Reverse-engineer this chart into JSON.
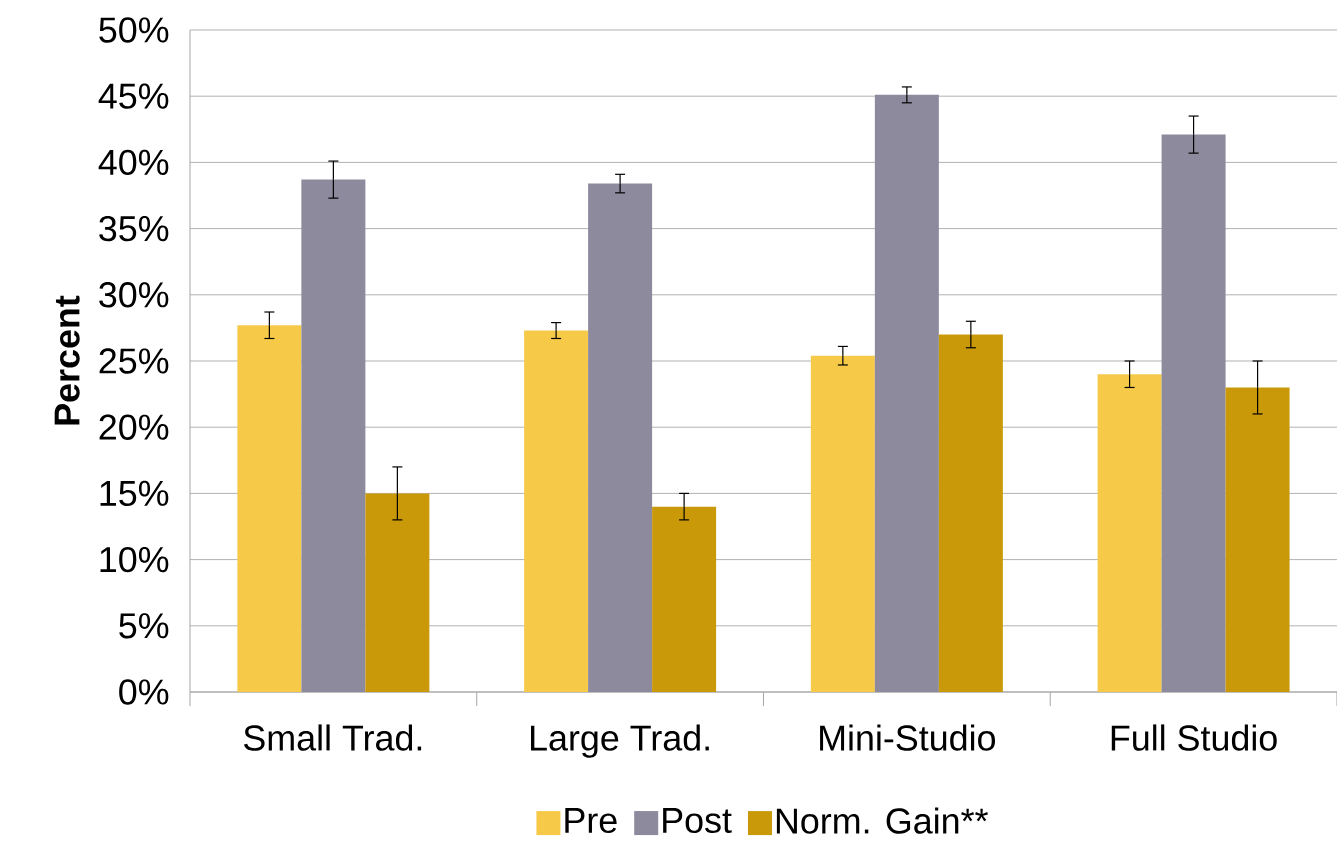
{
  "chart_data": {
    "type": "bar",
    "ylabel": "Percent",
    "categories": [
      "Small Trad.",
      "Large Trad.",
      "Mini-Studio",
      "Full Studio"
    ],
    "series": [
      {
        "name": "Pre",
        "color": "#f7c948",
        "values": [
          27.7,
          27.3,
          25.4,
          24.0
        ],
        "errors": [
          1.0,
          0.6,
          0.7,
          1.0
        ]
      },
      {
        "name": "Post",
        "color": "#8c8a9c",
        "values": [
          38.7,
          38.4,
          45.1,
          42.1
        ],
        "errors": [
          1.4,
          0.7,
          0.6,
          1.4
        ]
      },
      {
        "name": "Norm. Gain**",
        "color": "#c9990a",
        "values": [
          15.0,
          14.0,
          27.0,
          23.0
        ],
        "errors": [
          2.0,
          1.0,
          1.0,
          2.0
        ]
      }
    ],
    "ylim": [
      0,
      50
    ],
    "yticks": [
      {
        "value": 0,
        "label": "0%"
      },
      {
        "value": 5,
        "label": "5%"
      },
      {
        "value": 10,
        "label": "10%"
      },
      {
        "value": 15,
        "label": "15%"
      },
      {
        "value": 20,
        "label": "20%"
      },
      {
        "value": 25,
        "label": "25%"
      },
      {
        "value": 30,
        "label": "30%"
      },
      {
        "value": 35,
        "label": "35%"
      },
      {
        "value": 40,
        "label": "40%"
      },
      {
        "value": 45,
        "label": "45%"
      },
      {
        "value": 50,
        "label": "50%"
      }
    ],
    "grid": "y",
    "legend": "bottom"
  }
}
